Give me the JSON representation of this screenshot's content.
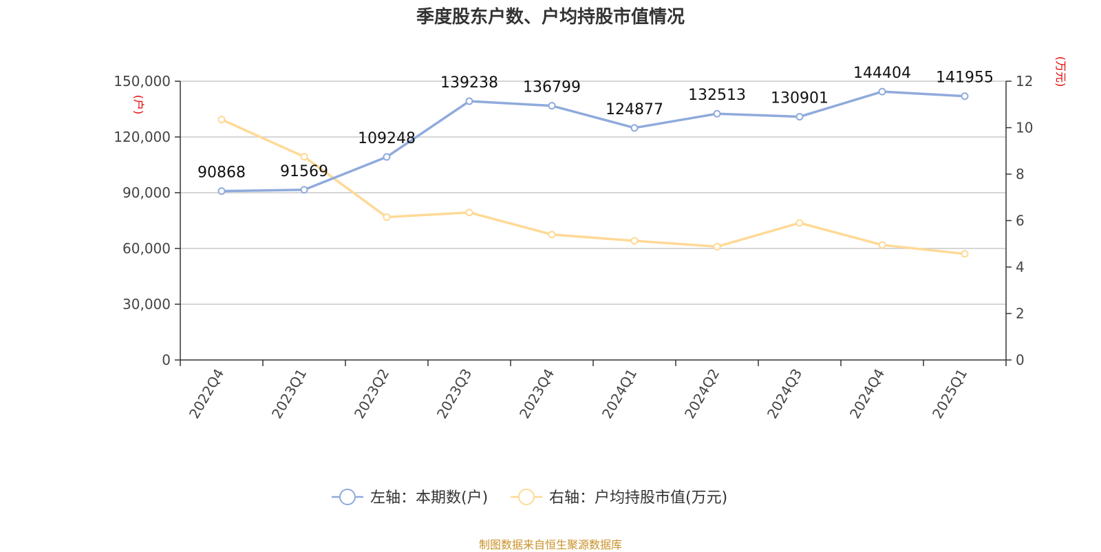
{
  "title": "季度股东户数、户均持股市值情况",
  "source": "制图数据来自恒生聚源数据库",
  "chart_data": {
    "type": "line",
    "title": "季度股东户数、户均持股市值情况",
    "categories": [
      "2022Q4",
      "2023Q1",
      "2023Q2",
      "2023Q3",
      "2023Q4",
      "2024Q1",
      "2024Q2",
      "2024Q3",
      "2024Q4",
      "2025Q1"
    ],
    "left_axis": {
      "unit": "(户)",
      "ylim": [
        0,
        150000
      ],
      "ticks": [
        "0",
        "30,000",
        "60,000",
        "90,000",
        "120,000",
        "150,000"
      ],
      "tick_values": [
        0,
        30000,
        60000,
        90000,
        120000,
        150000
      ]
    },
    "right_axis": {
      "unit": "(万元)",
      "ylim": [
        0,
        12
      ],
      "ticks": [
        "0",
        "2",
        "4",
        "6",
        "8",
        "10",
        "12"
      ],
      "tick_values": [
        0,
        2,
        4,
        6,
        8,
        10,
        12
      ]
    },
    "series": [
      {
        "name": "左轴：本期数(户)",
        "axis": "left",
        "color": "#8faadc",
        "values": [
          90868,
          91569,
          109248,
          139238,
          136799,
          124877,
          132513,
          130901,
          144404,
          141955
        ],
        "labels": [
          "90868",
          "91569",
          "109248",
          "139238",
          "136799",
          "124877",
          "132513",
          "130901",
          "144404",
          "141955"
        ]
      },
      {
        "name": "右轴：户均持股市值(万元)",
        "axis": "right",
        "color": "#ffd996",
        "values": [
          10.35,
          8.75,
          6.15,
          6.35,
          5.4,
          5.13,
          4.88,
          5.9,
          4.95,
          4.57
        ]
      }
    ],
    "grid": true,
    "legend": "bottom"
  }
}
